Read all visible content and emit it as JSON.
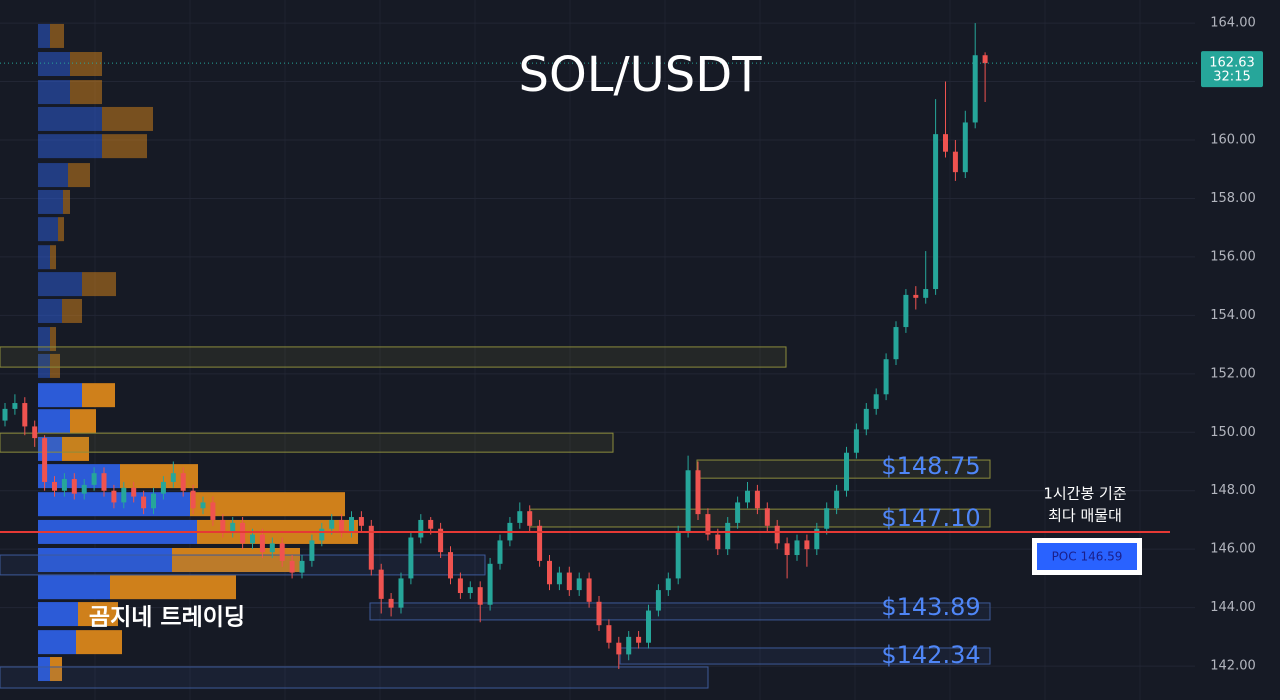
{
  "chart_data": {
    "type": "candlestick",
    "title": "SOL/USDT",
    "ylim": [
      140.84,
      164.79
    ],
    "yticks": [
      {
        "value": 142,
        "label": "142.00"
      },
      {
        "value": 144,
        "label": "144.00"
      },
      {
        "value": 146,
        "label": "146.00"
      },
      {
        "value": 148,
        "label": "148.00"
      },
      {
        "value": 150,
        "label": "150.00"
      },
      {
        "value": 152,
        "label": "152.00"
      },
      {
        "value": 154,
        "label": "154.00"
      },
      {
        "value": 156,
        "label": "156.00"
      },
      {
        "value": 158,
        "label": "158.00"
      },
      {
        "value": 160,
        "label": "160.00"
      },
      {
        "value": 162,
        "label": "162.00"
      },
      {
        "value": 164,
        "label": "164.00"
      }
    ],
    "grid": true,
    "up_color": "#26a69a",
    "down_color": "#ef5350",
    "ohlc": [
      [
        150.4,
        151.0,
        150.2,
        150.8
      ],
      [
        150.8,
        151.3,
        150.6,
        151.0
      ],
      [
        151.0,
        151.2,
        149.9,
        150.2
      ],
      [
        150.2,
        150.4,
        149.5,
        149.8
      ],
      [
        149.8,
        149.9,
        148.0,
        148.3
      ],
      [
        148.3,
        148.5,
        147.8,
        148.0
      ],
      [
        148.0,
        148.6,
        147.8,
        148.4
      ],
      [
        148.4,
        148.6,
        147.7,
        147.9
      ],
      [
        147.9,
        148.4,
        147.7,
        148.2
      ],
      [
        148.2,
        148.8,
        148.0,
        148.6
      ],
      [
        148.6,
        148.8,
        147.8,
        148.0
      ],
      [
        148.0,
        148.2,
        147.4,
        147.6
      ],
      [
        147.6,
        148.3,
        147.4,
        148.1
      ],
      [
        148.1,
        148.3,
        147.6,
        147.8
      ],
      [
        147.8,
        148.0,
        147.2,
        147.4
      ],
      [
        147.4,
        148.1,
        147.2,
        147.9
      ],
      [
        147.9,
        148.5,
        147.7,
        148.3
      ],
      [
        148.3,
        149.0,
        148.1,
        148.6
      ],
      [
        148.6,
        148.8,
        147.8,
        148.0
      ],
      [
        148.0,
        148.2,
        147.2,
        147.4
      ],
      [
        147.4,
        147.8,
        147.2,
        147.6
      ],
      [
        147.6,
        147.8,
        146.8,
        147.0
      ],
      [
        147.0,
        147.2,
        146.4,
        146.6
      ],
      [
        146.6,
        147.1,
        146.4,
        146.9
      ],
      [
        146.9,
        147.1,
        146.0,
        146.2
      ],
      [
        146.2,
        146.7,
        146.0,
        146.5
      ],
      [
        146.5,
        146.7,
        145.7,
        145.9
      ],
      [
        145.9,
        146.4,
        145.7,
        146.2
      ],
      [
        146.2,
        146.4,
        145.4,
        145.6
      ],
      [
        145.6,
        145.8,
        145.0,
        145.2
      ],
      [
        145.2,
        145.8,
        145.0,
        145.6
      ],
      [
        145.6,
        146.5,
        145.4,
        146.3
      ],
      [
        146.3,
        146.9,
        146.1,
        146.7
      ],
      [
        146.7,
        147.2,
        146.5,
        147.0
      ],
      [
        147.0,
        147.2,
        146.4,
        146.6
      ],
      [
        146.6,
        147.3,
        146.4,
        147.1
      ],
      [
        147.1,
        147.3,
        146.6,
        146.8
      ],
      [
        146.8,
        147.0,
        145.1,
        145.3
      ],
      [
        145.3,
        145.5,
        143.8,
        144.3
      ],
      [
        144.3,
        144.5,
        143.7,
        144.0
      ],
      [
        144.0,
        145.2,
        143.8,
        145.0
      ],
      [
        145.0,
        146.6,
        144.8,
        146.4
      ],
      [
        146.4,
        147.2,
        146.2,
        147.0
      ],
      [
        147.0,
        147.1,
        146.5,
        146.7
      ],
      [
        146.7,
        146.9,
        145.7,
        145.9
      ],
      [
        145.9,
        146.1,
        144.8,
        145.0
      ],
      [
        145.0,
        145.2,
        144.3,
        144.5
      ],
      [
        144.5,
        144.9,
        144.3,
        144.7
      ],
      [
        144.7,
        144.9,
        143.5,
        144.1
      ],
      [
        144.1,
        145.7,
        143.9,
        145.5
      ],
      [
        145.5,
        146.5,
        145.3,
        146.3
      ],
      [
        146.3,
        147.1,
        146.1,
        146.9
      ],
      [
        146.9,
        147.6,
        146.7,
        147.3
      ],
      [
        147.3,
        147.5,
        146.6,
        146.8
      ],
      [
        146.8,
        147.0,
        145.4,
        145.6
      ],
      [
        145.6,
        145.8,
        144.6,
        144.8
      ],
      [
        144.8,
        145.4,
        144.6,
        145.2
      ],
      [
        145.2,
        145.4,
        144.4,
        144.6
      ],
      [
        144.6,
        145.2,
        144.4,
        145.0
      ],
      [
        145.0,
        145.2,
        144.0,
        144.2
      ],
      [
        144.2,
        144.4,
        143.2,
        143.4
      ],
      [
        143.4,
        143.6,
        142.6,
        142.8
      ],
      [
        142.8,
        143.0,
        141.9,
        142.4
      ],
      [
        142.4,
        143.2,
        142.2,
        143.0
      ],
      [
        143.0,
        143.2,
        142.6,
        142.8
      ],
      [
        142.8,
        144.1,
        142.6,
        143.9
      ],
      [
        143.9,
        144.8,
        143.7,
        144.6
      ],
      [
        144.6,
        145.2,
        144.4,
        145.0
      ],
      [
        145.0,
        146.8,
        144.8,
        146.6
      ],
      [
        146.6,
        149.2,
        146.4,
        148.7
      ],
      [
        148.7,
        149.0,
        147.0,
        147.2
      ],
      [
        147.2,
        147.4,
        146.3,
        146.5
      ],
      [
        146.5,
        146.7,
        145.8,
        146.0
      ],
      [
        146.0,
        147.1,
        145.8,
        146.9
      ],
      [
        146.9,
        147.8,
        146.7,
        147.6
      ],
      [
        147.6,
        148.3,
        147.4,
        148.0
      ],
      [
        148.0,
        148.2,
        147.2,
        147.4
      ],
      [
        147.4,
        147.6,
        146.6,
        146.8
      ],
      [
        146.8,
        147.0,
        146.0,
        146.2
      ],
      [
        146.2,
        146.4,
        145.0,
        145.8
      ],
      [
        145.8,
        146.5,
        145.6,
        146.3
      ],
      [
        146.3,
        146.5,
        145.4,
        146.0
      ],
      [
        146.0,
        146.9,
        145.8,
        146.7
      ],
      [
        146.7,
        147.6,
        146.5,
        147.4
      ],
      [
        147.4,
        148.2,
        147.2,
        148.0
      ],
      [
        148.0,
        149.5,
        147.8,
        149.3
      ],
      [
        149.3,
        150.3,
        149.1,
        150.1
      ],
      [
        150.1,
        151.0,
        149.9,
        150.8
      ],
      [
        150.8,
        151.5,
        150.6,
        151.3
      ],
      [
        151.3,
        152.7,
        151.1,
        152.5
      ],
      [
        152.5,
        153.8,
        152.3,
        153.6
      ],
      [
        153.6,
        154.9,
        153.4,
        154.7
      ],
      [
        154.7,
        155.0,
        154.2,
        154.6
      ],
      [
        154.6,
        156.2,
        154.4,
        154.9
      ],
      [
        154.9,
        161.4,
        154.7,
        160.2
      ],
      [
        160.2,
        162.0,
        159.4,
        159.6
      ],
      [
        159.6,
        160.0,
        158.6,
        158.9
      ],
      [
        158.9,
        161.0,
        158.7,
        160.6
      ],
      [
        160.6,
        164.0,
        160.4,
        162.9
      ],
      [
        162.9,
        163.0,
        161.3,
        162.63
      ]
    ],
    "volume_profile": {
      "prices": [
        163.56,
        162.6,
        161.64,
        160.72,
        159.79,
        158.8,
        157.88,
        156.95,
        155.99,
        155.07,
        154.15,
        153.19,
        152.27,
        151.27,
        150.38,
        149.43,
        148.5,
        147.54,
        146.59,
        145.63,
        144.7,
        143.78,
        142.82,
        141.9
      ],
      "buy": [
        12,
        32,
        32,
        64,
        64,
        30,
        25,
        20,
        12,
        44,
        24,
        12,
        12,
        44,
        32,
        24,
        82,
        152,
        159,
        134,
        72,
        40,
        38,
        12
      ],
      "sell": [
        14,
        32,
        32,
        51,
        45,
        22,
        7,
        6,
        6,
        34,
        20,
        6,
        10,
        33,
        26,
        27,
        78,
        155,
        161,
        128,
        126,
        40,
        46,
        12
      ],
      "buy_color": "#2d5fe0",
      "sell_color": "#d9861a"
    },
    "zones": [
      {
        "low": 152.23,
        "high": 152.92,
        "color": "#8c8c3c"
      },
      {
        "low": 149.32,
        "high": 149.97,
        "color": "#8c8c3c"
      },
      {
        "low": 148.43,
        "high": 149.05,
        "color": "#8c8c3c"
      },
      {
        "low": 146.76,
        "high": 147.37,
        "color": "#8c8c3c"
      },
      {
        "low": 145.12,
        "high": 145.8,
        "color": "#3d5a99"
      },
      {
        "low": 143.58,
        "high": 144.16,
        "color": "#3d5a99"
      },
      {
        "low": 142.07,
        "high": 142.62,
        "color": "#3d5a99"
      },
      {
        "low": 141.25,
        "high": 141.97,
        "color": "#3d5a99"
      }
    ],
    "zone_labels": [
      "$148.75",
      "$147.10",
      "$143.89",
      "$142.34"
    ],
    "current_price": 162.63,
    "countdown": "32:15",
    "poc": 146.59,
    "poc_label": "POC 146.59",
    "poc_note": [
      "1시간봉 기준",
      "최다 매물대"
    ],
    "watermark": "곰지네 트레이딩"
  }
}
